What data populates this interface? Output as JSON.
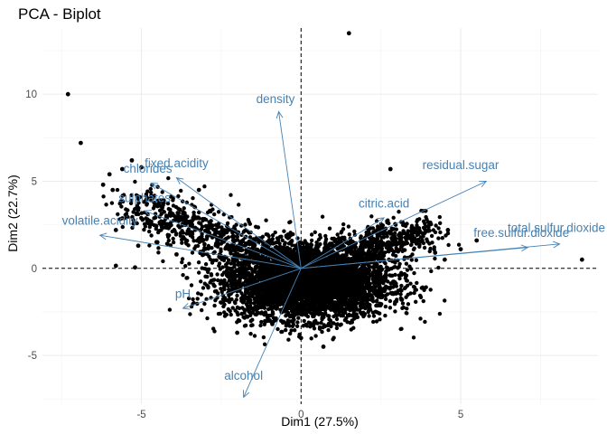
{
  "chart_data": {
    "type": "scatter",
    "title": "PCA - Biplot",
    "xlabel": "Dim1 (27.5%)",
    "ylabel": "Dim2 (22.7%)",
    "xlim": [
      -8.1,
      9.3
    ],
    "ylim": [
      -7.8,
      13.8
    ],
    "x_ticks": [
      -5,
      0,
      5
    ],
    "y_ticks": [
      -5,
      0,
      5,
      10
    ],
    "grid": true,
    "point_color": "#000000",
    "arrow_color": "#4682B4",
    "variables": [
      {
        "name": "density",
        "x": -0.7,
        "y": 9.0,
        "lx": -0.8,
        "ly": 9.5
      },
      {
        "name": "residual.sugar",
        "x": 5.8,
        "y": 5.0,
        "lx": 5.0,
        "ly": 5.7
      },
      {
        "name": "citric.acid",
        "x": 2.6,
        "y": 2.9,
        "lx": 2.6,
        "ly": 3.5
      },
      {
        "name": "total.sulfur.dioxide",
        "x": 8.1,
        "y": 1.4,
        "lx": 8.0,
        "ly": 2.1
      },
      {
        "name": "free.sulfur.dioxide",
        "x": 7.1,
        "y": 1.2,
        "lx": 6.9,
        "ly": 1.8
      },
      {
        "name": "fixed.acidity",
        "x": -3.9,
        "y": 5.2,
        "lx": -3.9,
        "ly": 5.8
      },
      {
        "name": "chlorides",
        "x": -4.7,
        "y": 4.9,
        "lx": -4.8,
        "ly": 5.5
      },
      {
        "name": "sulphates",
        "x": -4.9,
        "y": 3.3,
        "lx": -4.9,
        "ly": 3.8
      },
      {
        "name": "volatile.acidity",
        "x": -6.3,
        "y": 1.9,
        "lx": -6.3,
        "ly": 2.5
      },
      {
        "name": "pH",
        "x": -3.7,
        "y": -2.3,
        "lx": -3.7,
        "ly": -1.7
      },
      {
        "name": "alcohol",
        "x": -1.8,
        "y": -7.4,
        "lx": -1.8,
        "ly": -6.4
      }
    ],
    "outliers": [
      {
        "x": -7.3,
        "y": 10.0
      },
      {
        "x": -6.9,
        "y": 7.2
      },
      {
        "x": 1.5,
        "y": 13.5
      },
      {
        "x": -5.3,
        "y": 6.2
      },
      {
        "x": -5.6,
        "y": 5.7
      },
      {
        "x": -6.0,
        "y": 5.4
      },
      {
        "x": -6.2,
        "y": 4.8
      },
      {
        "x": -5.9,
        "y": 4.5
      },
      {
        "x": -5.0,
        "y": 5.8
      },
      {
        "x": -5.8,
        "y": 2.2
      },
      {
        "x": -5.1,
        "y": 1.3
      },
      {
        "x": -5.2,
        "y": 0.05
      },
      {
        "x": -5.8,
        "y": 0.15
      },
      {
        "x": -4.8,
        "y": 2.6
      },
      {
        "x": -4.5,
        "y": 1.5
      },
      {
        "x": -4.3,
        "y": 3.9
      },
      {
        "x": 2.8,
        "y": 5.7
      },
      {
        "x": 8.8,
        "y": 0.5
      },
      {
        "x": 5.0,
        "y": 1.1
      },
      {
        "x": 4.5,
        "y": 0.5
      },
      {
        "x": 4.2,
        "y": 0.9
      },
      {
        "x": 0.7,
        "y": -4.5
      },
      {
        "x": -0.9,
        "y": -3.2
      },
      {
        "x": 0.0,
        "y": -4.0
      },
      {
        "x": -2.0,
        "y": -3.7
      },
      {
        "x": -3.9,
        "y": 0.8
      },
      {
        "x": 4.6,
        "y": 2.2
      },
      {
        "x": 5.5,
        "y": 1.6
      },
      {
        "x": 3.9,
        "y": 3.3
      },
      {
        "x": -3.2,
        "y": 4.5
      }
    ],
    "cloud": {
      "n": 4200,
      "center": [
        0.2,
        -0.8
      ],
      "sx": 1.3,
      "sy": 1.05,
      "xrange": [
        -4.6,
        5.0
      ],
      "yrange": [
        -4.5,
        4.4
      ]
    }
  }
}
